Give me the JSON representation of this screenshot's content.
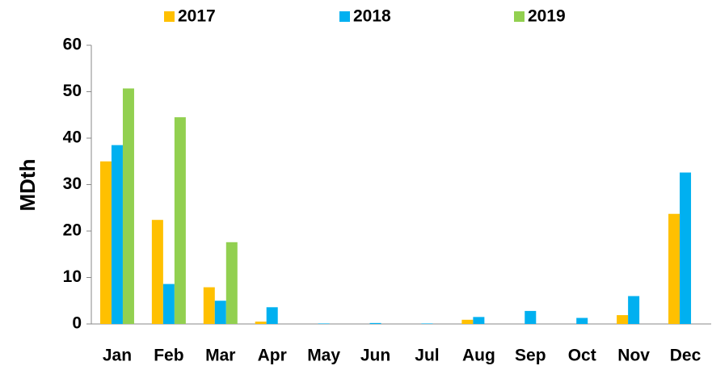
{
  "chart_data": {
    "type": "bar",
    "y_label": "MDth",
    "categories": [
      "Jan",
      "Feb",
      "Mar",
      "Apr",
      "May",
      "Jun",
      "Jul",
      "Aug",
      "Sep",
      "Oct",
      "Nov",
      "Dec"
    ],
    "series": [
      {
        "name": "2017",
        "color": "#ffc000",
        "values": [
          35,
          22.4,
          7.9,
          0.5,
          0,
          0,
          0,
          0.9,
          0,
          0,
          1.9,
          23.7
        ]
      },
      {
        "name": "2018",
        "color": "#00b0f0",
        "values": [
          38.5,
          8.6,
          5,
          3.6,
          0.1,
          0.2,
          0.1,
          1.5,
          2.8,
          1.3,
          6,
          32.6
        ]
      },
      {
        "name": "2019",
        "color": "#92d050",
        "values": [
          50.7,
          44.5,
          17.6,
          null,
          null,
          null,
          null,
          null,
          null,
          null,
          null,
          null
        ]
      }
    ],
    "ylim": [
      0,
      60
    ],
    "yticks": [
      0,
      10,
      20,
      30,
      40,
      50,
      60
    ],
    "grid": false
  }
}
